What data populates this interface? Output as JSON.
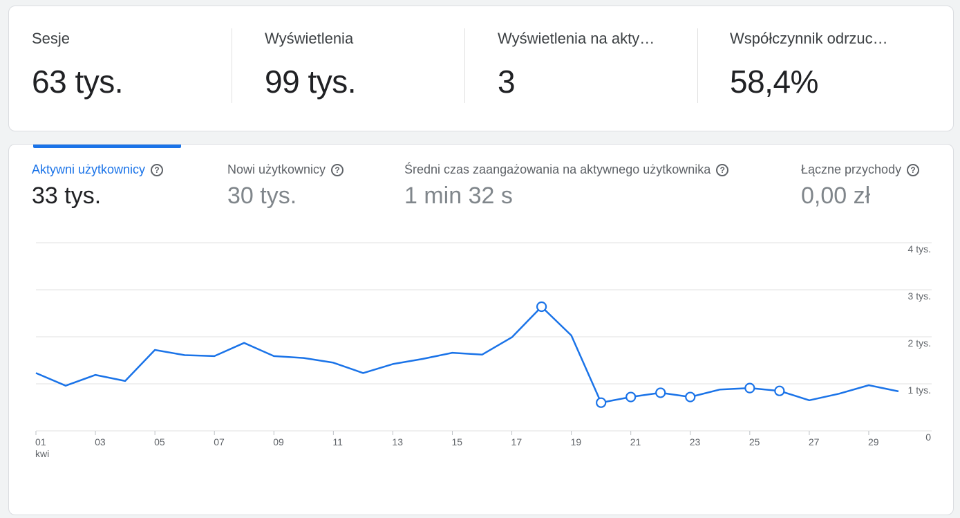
{
  "summary": [
    {
      "label": "Sesje",
      "value": "63 tys."
    },
    {
      "label": "Wyświetlenia",
      "value": "99 tys."
    },
    {
      "label": "Wyświetlenia na akty…",
      "value": "3"
    },
    {
      "label": "Współczynnik odrzuc…",
      "value": "58,4%"
    }
  ],
  "metric_tabs": [
    {
      "label": "Aktywni użytkownicy",
      "value": "33 tys.",
      "active": true,
      "help_icon": "help-circle-icon"
    },
    {
      "label": "Nowi użytkownicy",
      "value": "30 tys.",
      "active": false,
      "help_icon": "help-circle-icon"
    },
    {
      "label": "Średni czas zaangażowania na aktywnego użytkownika",
      "value": "1 min 32 s",
      "active": false,
      "help_icon": "help-circle-icon"
    },
    {
      "label": "Łączne przychody",
      "value": "0,00 zł",
      "active": false,
      "help_icon": "help-circle-icon"
    }
  ],
  "colors": {
    "accent": "#1a73e8",
    "grid": "#e0e0e0",
    "text_muted": "#5f6368"
  },
  "chart_data": {
    "type": "line",
    "x": [
      "01",
      "02",
      "03",
      "04",
      "05",
      "06",
      "07",
      "08",
      "09",
      "10",
      "11",
      "12",
      "13",
      "14",
      "15",
      "16",
      "17",
      "18",
      "19",
      "20",
      "21",
      "22",
      "23",
      "24",
      "25",
      "26",
      "27",
      "28",
      "29",
      "30"
    ],
    "x_tick_labels": [
      "01",
      "03",
      "05",
      "07",
      "09",
      "11",
      "13",
      "15",
      "17",
      "19",
      "21",
      "23",
      "25",
      "27",
      "29"
    ],
    "x_sublabel": "kwi",
    "series": [
      {
        "values": [
          1230,
          960,
          1190,
          1060,
          1720,
          1610,
          1590,
          1870,
          1590,
          1550,
          1450,
          1230,
          1420,
          1530,
          1660,
          1620,
          1990,
          2640,
          2030,
          600,
          720,
          810,
          720,
          880,
          910,
          850,
          650,
          790,
          970,
          840
        ]
      }
    ],
    "marked_points": [
      "18",
      "20",
      "21",
      "22",
      "23",
      "25",
      "26"
    ],
    "ylim": [
      0,
      4000
    ],
    "y_ticks": [
      0,
      1000,
      2000,
      3000,
      4000
    ],
    "y_tick_labels": [
      "0",
      "1 tys.",
      "2 tys.",
      "3 tys.",
      "4 tys."
    ],
    "grid": true
  }
}
